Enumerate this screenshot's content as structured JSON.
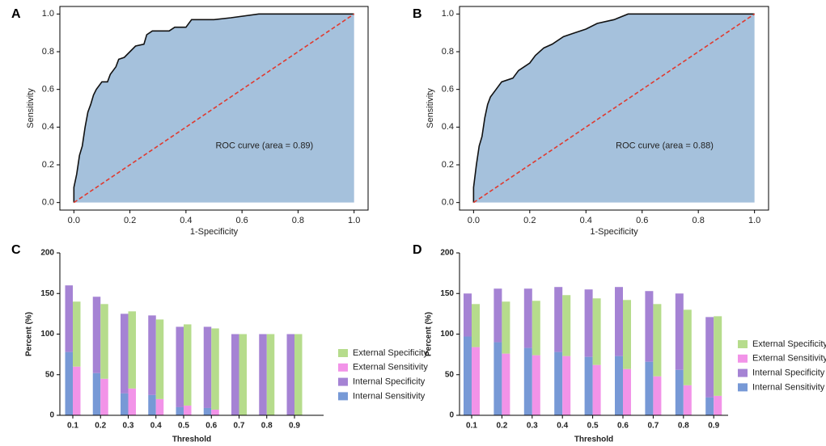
{
  "chart_data": [
    {
      "type": "roc",
      "panel": "A",
      "xlabel": "1-Specificity",
      "ylabel": "Sensitivity",
      "annotation": "ROC curve (area = 0.89)",
      "x": [
        0,
        0,
        0.01,
        0.02,
        0.03,
        0.04,
        0.05,
        0.06,
        0.07,
        0.08,
        0.1,
        0.12,
        0.13,
        0.15,
        0.16,
        0.18,
        0.2,
        0.22,
        0.25,
        0.26,
        0.28,
        0.34,
        0.36,
        0.4,
        0.42,
        0.5,
        0.56,
        0.66,
        1
      ],
      "values": [
        0,
        0.08,
        0.15,
        0.25,
        0.3,
        0.4,
        0.48,
        0.52,
        0.57,
        0.6,
        0.64,
        0.64,
        0.68,
        0.72,
        0.76,
        0.77,
        0.8,
        0.83,
        0.84,
        0.89,
        0.91,
        0.91,
        0.93,
        0.93,
        0.97,
        0.97,
        0.98,
        1,
        1
      ],
      "color": "#a5c1dc",
      "line_color": "#111111",
      "reference_line": {
        "x": [
          0,
          1
        ],
        "values": [
          0,
          1
        ],
        "color": "#e03a2f"
      },
      "xlim": [
        -0.05,
        1.05
      ],
      "ylim": [
        -0.04,
        1.04
      ],
      "xticks": [
        {
          "value": 0,
          "label": "0.0"
        },
        0.2,
        0.4,
        0.6,
        0.8,
        {
          "value": 1,
          "label": "1.0"
        }
      ],
      "yticks": [
        {
          "value": 0,
          "label": "0.0"
        },
        0.2,
        0.4,
        0.6,
        0.8,
        {
          "value": 1,
          "label": "1.0"
        }
      ]
    },
    {
      "type": "roc",
      "panel": "B",
      "xlabel": "1-Specificity",
      "ylabel": "Sensitivity",
      "annotation": "ROC curve (area = 0.88)",
      "x": [
        0,
        0,
        0.01,
        0.02,
        0.03,
        0.04,
        0.05,
        0.06,
        0.08,
        0.1,
        0.14,
        0.16,
        0.18,
        0.2,
        0.22,
        0.25,
        0.28,
        0.32,
        0.36,
        0.4,
        0.44,
        0.5,
        0.55,
        1
      ],
      "values": [
        0,
        0.08,
        0.2,
        0.3,
        0.35,
        0.45,
        0.52,
        0.56,
        0.6,
        0.64,
        0.66,
        0.7,
        0.72,
        0.74,
        0.78,
        0.82,
        0.84,
        0.88,
        0.9,
        0.92,
        0.95,
        0.97,
        1,
        1
      ],
      "color": "#a5c1dc",
      "line_color": "#111111",
      "reference_line": {
        "x": [
          0,
          1
        ],
        "values": [
          0,
          1
        ],
        "color": "#e03a2f"
      },
      "xlim": [
        -0.05,
        1.05
      ],
      "ylim": [
        -0.04,
        1.04
      ],
      "xticks": [
        {
          "value": 0,
          "label": "0.0"
        },
        0.2,
        0.4,
        0.6,
        0.8,
        {
          "value": 1,
          "label": "1.0"
        }
      ],
      "yticks": [
        {
          "value": 0,
          "label": "0.0"
        },
        0.2,
        0.4,
        0.6,
        0.8,
        {
          "value": 1,
          "label": "1.0"
        }
      ]
    },
    {
      "type": "bar",
      "panel": "C",
      "xlabel": "Threshold",
      "ylabel": "Percent (%)",
      "stacked": true,
      "categories": [
        "0.1",
        "0.2",
        "0.3",
        "0.4",
        "0.5",
        "0.6",
        "0.7",
        "0.8",
        "0.9"
      ],
      "series": [
        {
          "name": "Internal Sensitivity",
          "color": "#7799d6",
          "stack": 0,
          "values": [
            78,
            52,
            27,
            25,
            10,
            9,
            0,
            0,
            0
          ]
        },
        {
          "name": "Internal Specificity",
          "color": "#a583d4",
          "stack": 0,
          "values": [
            82,
            94,
            98,
            98,
            99,
            100,
            100,
            100,
            100
          ]
        },
        {
          "name": "External Sensitivity",
          "color": "#f293e8",
          "stack": 1,
          "values": [
            60,
            45,
            33,
            20,
            12,
            7,
            0,
            0,
            0
          ]
        },
        {
          "name": "External Specificity",
          "color": "#b6dc8c",
          "stack": 1,
          "values": [
            80,
            92,
            95,
            98,
            100,
            100,
            100,
            100,
            100
          ]
        }
      ],
      "ylim": [
        0,
        200
      ],
      "yticks": [
        0,
        50,
        100,
        150,
        200
      ]
    },
    {
      "type": "bar",
      "panel": "D",
      "xlabel": "Threshold",
      "ylabel": "Percent (%)",
      "stacked": true,
      "categories": [
        "0.1",
        "0.2",
        "0.3",
        "0.4",
        "0.5",
        "0.6",
        "0.7",
        "0.8",
        "0.9"
      ],
      "series": [
        {
          "name": "Internal Sensitivity",
          "color": "#7799d6",
          "stack": 0,
          "values": [
            97,
            90,
            83,
            78,
            72,
            73,
            66,
            56,
            22
          ]
        },
        {
          "name": "Internal Specificity",
          "color": "#a583d4",
          "stack": 0,
          "values": [
            53,
            66,
            73,
            80,
            83,
            85,
            87,
            94,
            99
          ]
        },
        {
          "name": "External Sensitivity",
          "color": "#f293e8",
          "stack": 1,
          "values": [
            84,
            76,
            74,
            73,
            62,
            57,
            48,
            37,
            24
          ]
        },
        {
          "name": "External Specificity",
          "color": "#b6dc8c",
          "stack": 1,
          "values": [
            53,
            64,
            67,
            75,
            82,
            85,
            89,
            93,
            98
          ]
        }
      ],
      "ylim": [
        0,
        200
      ],
      "yticks": [
        0,
        50,
        100,
        150,
        200
      ]
    }
  ]
}
